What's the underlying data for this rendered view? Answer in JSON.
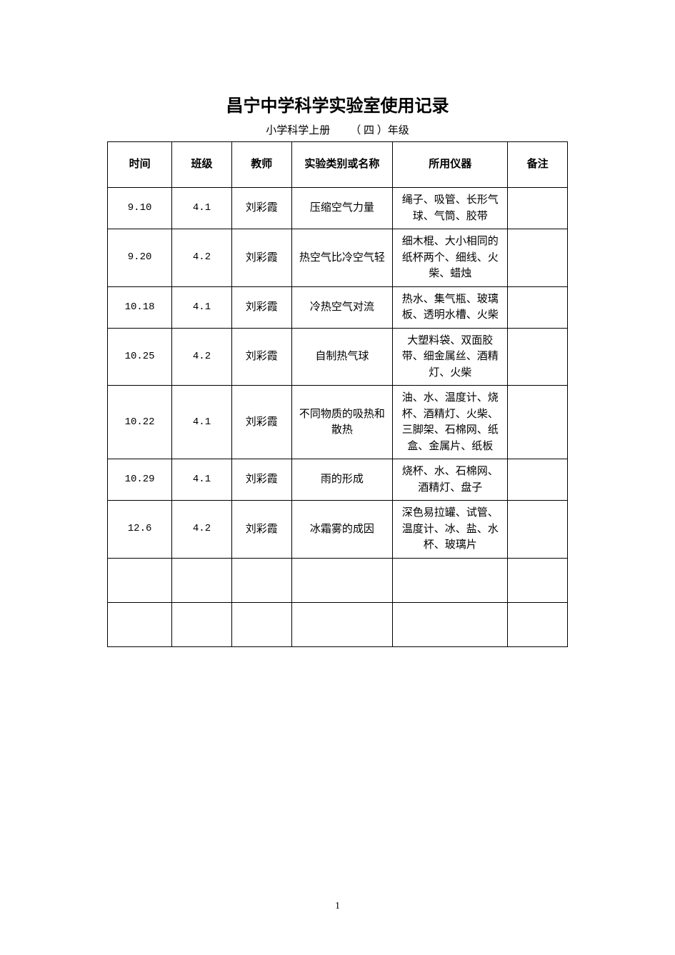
{
  "document": {
    "title": "昌宁中学科学实验室使用记录",
    "subtitle_prefix": "小学科学上册",
    "subtitle_grade_open": "（",
    "subtitle_grade": "四",
    "subtitle_grade_close": "）年级",
    "page_number": "1"
  },
  "table": {
    "headers": {
      "time": "时间",
      "class": "班级",
      "teacher": "教师",
      "experiment": "实验类别或名称",
      "instrument": "所用仪器",
      "note": "备注"
    },
    "column_widths": {
      "time": "14%",
      "class": "13%",
      "teacher": "13%",
      "experiment": "22%",
      "instrument": "25%",
      "note": "13%"
    },
    "border_color": "#000000",
    "background_color": "#ffffff",
    "rows": [
      {
        "time": "9.10",
        "class": "4.1",
        "teacher": "刘彩霞",
        "experiment": "压缩空气力量",
        "instrument": "绳子、吸管、长形气球、气筒、胶带",
        "note": ""
      },
      {
        "time": "9.20",
        "class": "4.2",
        "teacher": "刘彩霞",
        "experiment": "热空气比冷空气轻",
        "instrument": "细木棍、大小相同的纸杯两个、细线、火柴、蜡烛",
        "note": ""
      },
      {
        "time": "10.18",
        "class": "4.1",
        "teacher": "刘彩霞",
        "experiment": "冷热空气对流",
        "instrument": "热水、集气瓶、玻璃板、透明水槽、火柴",
        "note": ""
      },
      {
        "time": "10.25",
        "class": "4.2",
        "teacher": "刘彩霞",
        "experiment": "自制热气球",
        "instrument": "大塑料袋、双面胶带、细金属丝、酒精灯、火柴",
        "note": ""
      },
      {
        "time": "10.22",
        "class": "4.1",
        "teacher": "刘彩霞",
        "experiment": "不同物质的吸热和散热",
        "instrument": "油、水、温度计、烧杯、酒精灯、火柴、三脚架、石棉网、纸盒、金属片、纸板",
        "note": ""
      },
      {
        "time": "10.29",
        "class": "4.1",
        "teacher": "刘彩霞",
        "experiment": "雨的形成",
        "instrument": "烧杯、水、石棉网、酒精灯、盘子",
        "note": ""
      },
      {
        "time": "12.6",
        "class": "4.2",
        "teacher": "刘彩霞",
        "experiment": "冰霜雾的成因",
        "instrument": "深色易拉罐、试管、温度计、冰、盐、水杯、玻璃片",
        "note": ""
      },
      {
        "time": "",
        "class": "",
        "teacher": "",
        "experiment": "",
        "instrument": "",
        "note": ""
      },
      {
        "time": "",
        "class": "",
        "teacher": "",
        "experiment": "",
        "instrument": "",
        "note": ""
      }
    ]
  },
  "typography": {
    "title_fontsize": 24,
    "title_fontweight": "bold",
    "subtitle_fontsize": 15,
    "body_fontsize": 15,
    "font_family": "SimSun"
  }
}
